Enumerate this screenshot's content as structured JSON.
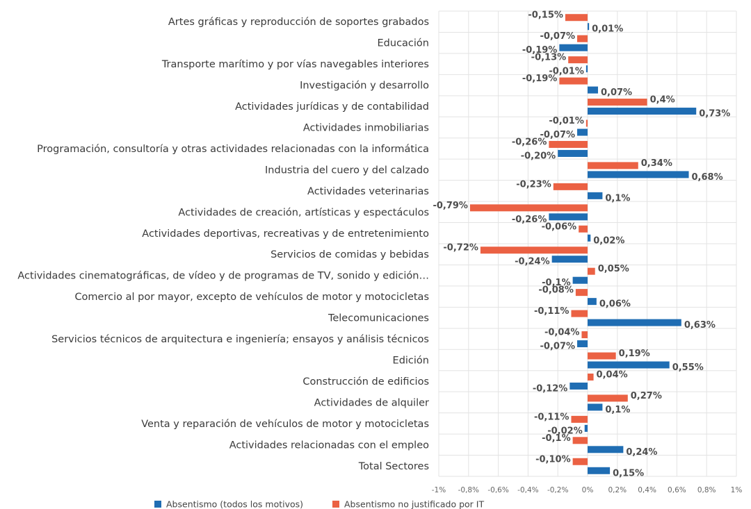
{
  "chart_data": {
    "type": "bar",
    "orientation": "horizontal",
    "categories": [
      "Artes gráficas y reproducción de soportes grabados",
      "Educación",
      "Transporte marítimo y por vías navegables interiores",
      "Investigación y desarrollo",
      "Actividades jurídicas y de contabilidad",
      "Actividades inmobiliarias",
      "Programación, consultoría y otras actividades relacionadas con la informática",
      "Industria del cuero y del calzado",
      "Actividades veterinarias",
      "Actividades de creación, artísticas y espectáculos",
      "Actividades deportivas, recreativas y de entretenimiento",
      "Servicios de comidas y bebidas",
      "Actividades cinematográficas, de vídeo y de programas de TV, sonido y edición…",
      "Comercio al por mayor, excepto de vehículos de motor y motocicletas",
      "Telecomunicaciones",
      "Servicios técnicos de arquitectura e ingeniería; ensayos y análisis técnicos",
      "Edición",
      "Construcción de edificios",
      "Actividades de alquiler",
      "Venta y reparación de vehículos de motor y motocicletas",
      "Actividades relacionadas con el empleo",
      "Total Sectores"
    ],
    "series": [
      {
        "name": "Absentismo (todos los motivos)",
        "color": "#1f6db3",
        "values": [
          0.01,
          -0.19,
          -0.01,
          0.07,
          0.73,
          -0.07,
          -0.2,
          0.68,
          0.1,
          -0.26,
          0.02,
          -0.24,
          -0.1,
          0.06,
          0.63,
          -0.07,
          0.55,
          -0.12,
          0.1,
          -0.02,
          0.24,
          0.15
        ],
        "value_labels": [
          "0,01%",
          "-0,19%",
          "-0,01%",
          "0,07%",
          "0,73%",
          "-0,07%",
          "-0,20%",
          "0,68%",
          "0,1%",
          "-0,26%",
          "0,02%",
          "-0,24%",
          "-0,1%",
          "0,06%",
          "0,63%",
          "-0,07%",
          "0,55%",
          "-0,12%",
          "0,1%",
          "-0,02%",
          "0,24%",
          "0,15%"
        ]
      },
      {
        "name": "Absentismo no justificado por IT",
        "color": "#eb6143",
        "values": [
          -0.15,
          -0.07,
          -0.13,
          -0.19,
          0.4,
          -0.01,
          -0.26,
          0.34,
          -0.23,
          -0.79,
          -0.06,
          -0.72,
          0.05,
          -0.08,
          -0.11,
          -0.04,
          0.19,
          0.04,
          0.27,
          -0.11,
          -0.1,
          -0.1
        ],
        "value_labels": [
          "-0,15%",
          "-0,07%",
          "-0,13%",
          "-0,19%",
          "0,4%",
          "-0,01%",
          "-0,26%",
          "0,34%",
          "-0,23%",
          "-0,79%",
          "-0,06%",
          "-0,72%",
          "0,05%",
          "-0,08%",
          "-0,11%",
          "-0,04%",
          "0,19%",
          "0,04%",
          "0,27%",
          "-0,11%",
          "-0,1%",
          "-0,10%"
        ]
      }
    ],
    "xlim": [
      -1,
      1
    ],
    "xticks": [
      {
        "value": -1,
        "label": "-1%"
      },
      {
        "value": -0.8,
        "label": "-0,8%"
      },
      {
        "value": -0.6,
        "label": "-0,6%"
      },
      {
        "value": -0.4,
        "label": "-0,4%"
      },
      {
        "value": -0.2,
        "label": "-0,2%"
      },
      {
        "value": 0,
        "label": "0%"
      },
      {
        "value": 0.2,
        "label": "0,2%"
      },
      {
        "value": 0.4,
        "label": "0,4%"
      },
      {
        "value": 0.6,
        "label": "0,6%"
      },
      {
        "value": 0.8,
        "label": "0,8%"
      },
      {
        "value": 1,
        "label": "1%"
      }
    ],
    "grid": true,
    "legend": "bottom"
  }
}
